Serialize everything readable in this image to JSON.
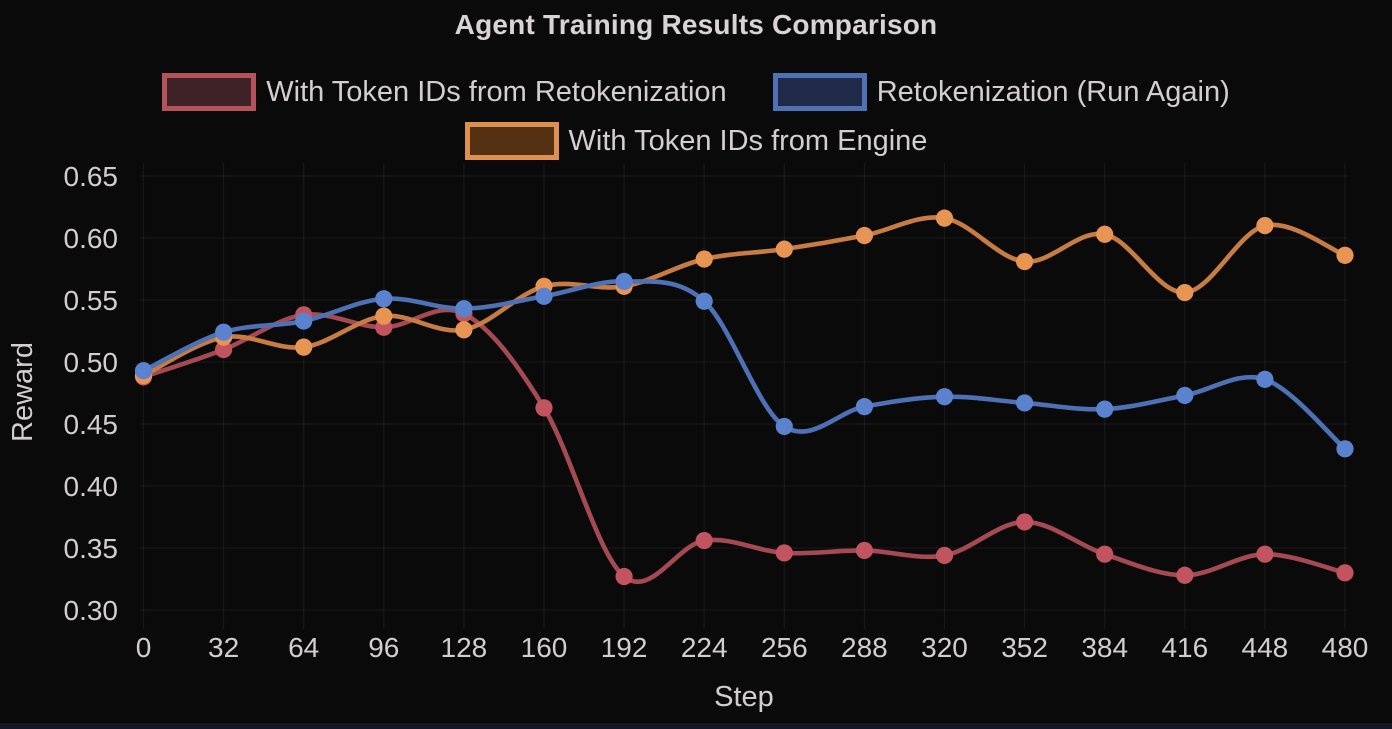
{
  "title": "Agent Training Results Comparison",
  "chart_data": {
    "type": "line",
    "title": "Agent Training Results Comparison",
    "xlabel": "Step",
    "ylabel": "Reward",
    "x": [
      0,
      32,
      64,
      96,
      128,
      160,
      192,
      224,
      256,
      288,
      320,
      352,
      384,
      416,
      448,
      480
    ],
    "series": [
      {
        "name": "With Token IDs from Retokenization",
        "line_color": "#a54a53",
        "marker_color": "#c25460",
        "legend_border": "#b3545c",
        "legend_fill": "#3f2226",
        "values": [
          0.488,
          0.51,
          0.538,
          0.528,
          0.539,
          0.463,
          0.327,
          0.356,
          0.346,
          0.348,
          0.344,
          0.371,
          0.345,
          0.328,
          0.345,
          0.33
        ]
      },
      {
        "name": "Retokenization (Run Again)",
        "line_color": "#4e71b5",
        "marker_color": "#5b82cf",
        "legend_border": "#4f72b4",
        "legend_fill": "#1f2b49",
        "values": [
          0.493,
          0.524,
          0.533,
          0.551,
          0.543,
          0.553,
          0.565,
          0.549,
          0.448,
          0.464,
          0.472,
          0.467,
          0.462,
          0.473,
          0.486,
          0.43
        ]
      },
      {
        "name": "With Token IDs from Engine",
        "line_color": "#c77c43",
        "marker_color": "#e89554",
        "legend_border": "#de9050",
        "legend_fill": "#553114",
        "values": [
          0.489,
          0.52,
          0.512,
          0.537,
          0.526,
          0.561,
          0.561,
          0.583,
          0.591,
          0.602,
          0.616,
          0.581,
          0.603,
          0.556,
          0.61,
          0.586
        ]
      }
    ],
    "xticks": [
      0,
      32,
      64,
      96,
      128,
      160,
      192,
      224,
      256,
      288,
      320,
      352,
      384,
      416,
      448,
      480
    ],
    "yticks": [
      0.65,
      0.6,
      0.55,
      0.5,
      0.45,
      0.4,
      0.35,
      0.3
    ],
    "ytick_labels": [
      "0.65",
      "0.60",
      "0.55",
      "0.50",
      "0.45",
      "0.40",
      "0.35",
      "0.30"
    ],
    "xlim": [
      0,
      480
    ],
    "ylim": [
      0.3,
      0.65
    ],
    "grid": true,
    "legend_position": "top",
    "z_order": [
      0,
      2,
      1
    ],
    "grid_color": "rgba(255,255,255,0.06)",
    "text_color": "#d2cecf",
    "background_color": "#0a0a0b"
  }
}
